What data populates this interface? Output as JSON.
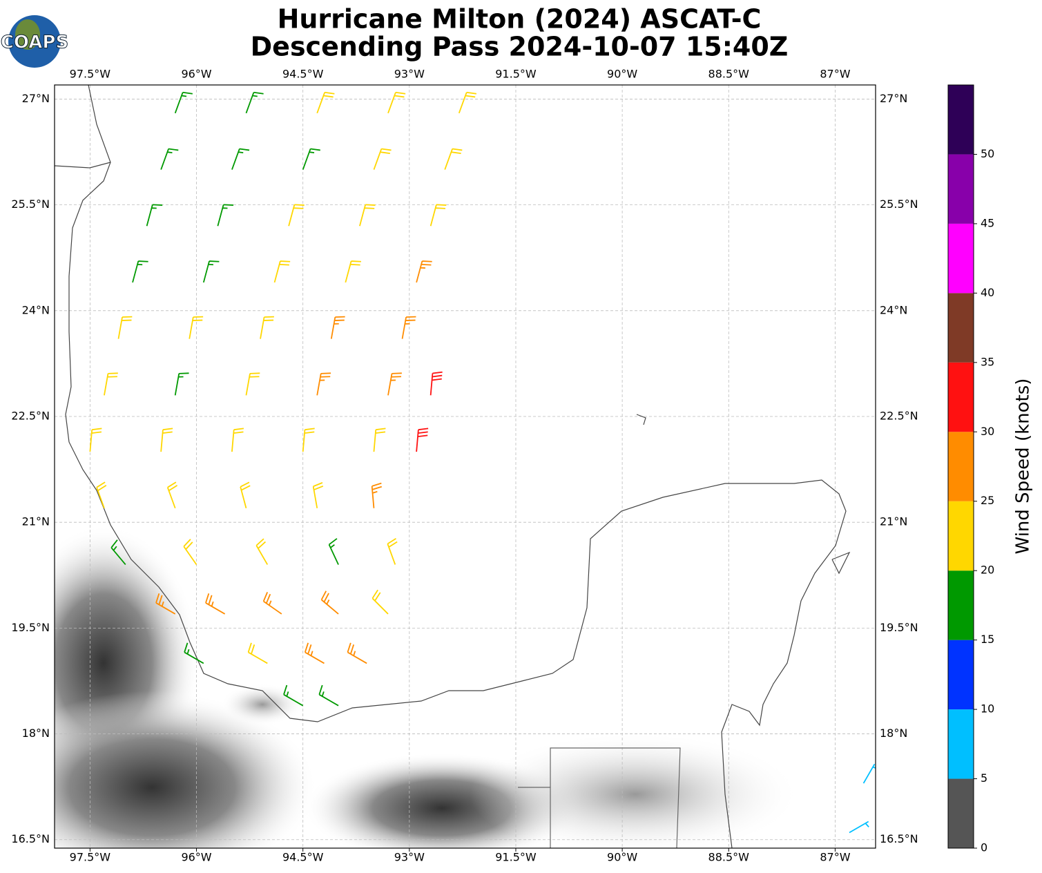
{
  "map": {
    "title": "Hurricane Milton (2024) ASCAT-C",
    "subtitle": "Descending Pass 2024-10-07 15:40Z",
    "logo": "COAPS",
    "xlim": [
      -98.0,
      -86.43
    ],
    "ylim": [
      16.38,
      27.2
    ],
    "xticks": [
      {
        "value": -97.5,
        "label": "97.5°W"
      },
      {
        "value": -96,
        "label": "96°W"
      },
      {
        "value": -94.5,
        "label": "94.5°W"
      },
      {
        "value": -93,
        "label": "93°W"
      },
      {
        "value": -91.5,
        "label": "91.5°W"
      },
      {
        "value": -90,
        "label": "90°W"
      },
      {
        "value": -88.5,
        "label": "88.5°W"
      },
      {
        "value": -87,
        "label": "87°W"
      }
    ],
    "yticks": [
      {
        "value": 27,
        "label": "27°N"
      },
      {
        "value": 25.5,
        "label": "25.5°N"
      },
      {
        "value": 24,
        "label": "24°N"
      },
      {
        "value": 22.5,
        "label": "22.5°N"
      },
      {
        "value": 21,
        "label": "21°N"
      },
      {
        "value": 19.5,
        "label": "19.5°N"
      },
      {
        "value": 18,
        "label": "18°N"
      },
      {
        "value": 16.5,
        "label": "16.5°N"
      }
    ],
    "grid": true,
    "wind_barbs": [
      [
        -96.3,
        26.8,
        17,
        20
      ],
      [
        -95.3,
        26.8,
        18,
        20
      ],
      [
        -94.3,
        26.8,
        22,
        20
      ],
      [
        -93.3,
        26.8,
        22,
        20
      ],
      [
        -92.3,
        26.8,
        23,
        20
      ],
      [
        -96.5,
        26.0,
        16,
        20
      ],
      [
        -95.5,
        26.0,
        18,
        20
      ],
      [
        -94.5,
        26.0,
        19,
        20
      ],
      [
        -93.5,
        26.0,
        22,
        20
      ],
      [
        -92.5,
        26.0,
        23,
        20
      ],
      [
        -96.7,
        25.2,
        17,
        15
      ],
      [
        -95.7,
        25.2,
        18,
        15
      ],
      [
        -94.7,
        25.2,
        21,
        15
      ],
      [
        -93.7,
        25.2,
        22,
        15
      ],
      [
        -92.7,
        25.2,
        23,
        15
      ],
      [
        -96.9,
        24.4,
        17,
        15
      ],
      [
        -95.9,
        24.4,
        18,
        15
      ],
      [
        -94.9,
        24.4,
        22,
        15
      ],
      [
        -93.9,
        24.4,
        23,
        15
      ],
      [
        -92.9,
        24.4,
        26,
        15
      ],
      [
        -97.1,
        23.6,
        21,
        10
      ],
      [
        -96.1,
        23.6,
        22,
        10
      ],
      [
        -95.1,
        23.6,
        23,
        10
      ],
      [
        -94.1,
        23.6,
        26,
        10
      ],
      [
        -93.1,
        23.6,
        27,
        10
      ],
      [
        -97.3,
        22.8,
        21,
        10
      ],
      [
        -96.3,
        22.8,
        18,
        10
      ],
      [
        -95.3,
        22.8,
        23,
        10
      ],
      [
        -94.3,
        22.8,
        26,
        10
      ],
      [
        -93.3,
        22.8,
        27,
        10
      ],
      [
        -92.7,
        22.8,
        31,
        5
      ],
      [
        -97.5,
        22.0,
        22,
        5
      ],
      [
        -96.5,
        22.0,
        23,
        5
      ],
      [
        -95.5,
        22.0,
        23,
        5
      ],
      [
        -94.5,
        22.0,
        24,
        5
      ],
      [
        -93.5,
        22.0,
        24,
        5
      ],
      [
        -92.9,
        22.0,
        31,
        5
      ],
      [
        -97.3,
        21.2,
        21,
        340
      ],
      [
        -96.3,
        21.2,
        22,
        340
      ],
      [
        -95.3,
        21.2,
        22,
        345
      ],
      [
        -94.3,
        21.2,
        23,
        350
      ],
      [
        -93.5,
        21.2,
        27,
        355
      ],
      [
        -97.0,
        20.4,
        18,
        320
      ],
      [
        -96.0,
        20.4,
        22,
        325
      ],
      [
        -95.0,
        20.4,
        23,
        330
      ],
      [
        -94.0,
        20.4,
        18,
        335
      ],
      [
        -93.2,
        20.4,
        23,
        340
      ],
      [
        -96.3,
        19.7,
        27,
        300
      ],
      [
        -95.6,
        19.7,
        26,
        300
      ],
      [
        -94.8,
        19.7,
        27,
        305
      ],
      [
        -94.0,
        19.7,
        26,
        310
      ],
      [
        -93.3,
        19.7,
        24,
        315
      ],
      [
        -95.9,
        19.0,
        17,
        300
      ],
      [
        -95.0,
        19.0,
        23,
        300
      ],
      [
        -94.2,
        19.0,
        26,
        300
      ],
      [
        -93.6,
        19.0,
        27,
        300
      ],
      [
        -94.5,
        18.4,
        18,
        300
      ],
      [
        -94.0,
        18.4,
        18,
        300
      ],
      [
        -86.6,
        17.3,
        8,
        30
      ],
      [
        -86.8,
        16.6,
        7,
        60
      ]
    ],
    "colorbar": {
      "label": "Wind Speed (knots)",
      "bounds": [
        0,
        5,
        10,
        15,
        20,
        25,
        30,
        35,
        40,
        45,
        50,
        55
      ],
      "colors": [
        "#555555",
        "#00bfff",
        "#0033ff",
        "#009900",
        "#ffd700",
        "#ff8c00",
        "#ff1111",
        "#7f3a26",
        "#ff00ff",
        "#8800aa",
        "#2e0057"
      ],
      "ticks": [
        0,
        5,
        10,
        15,
        20,
        25,
        30,
        35,
        40,
        45,
        50
      ]
    }
  }
}
